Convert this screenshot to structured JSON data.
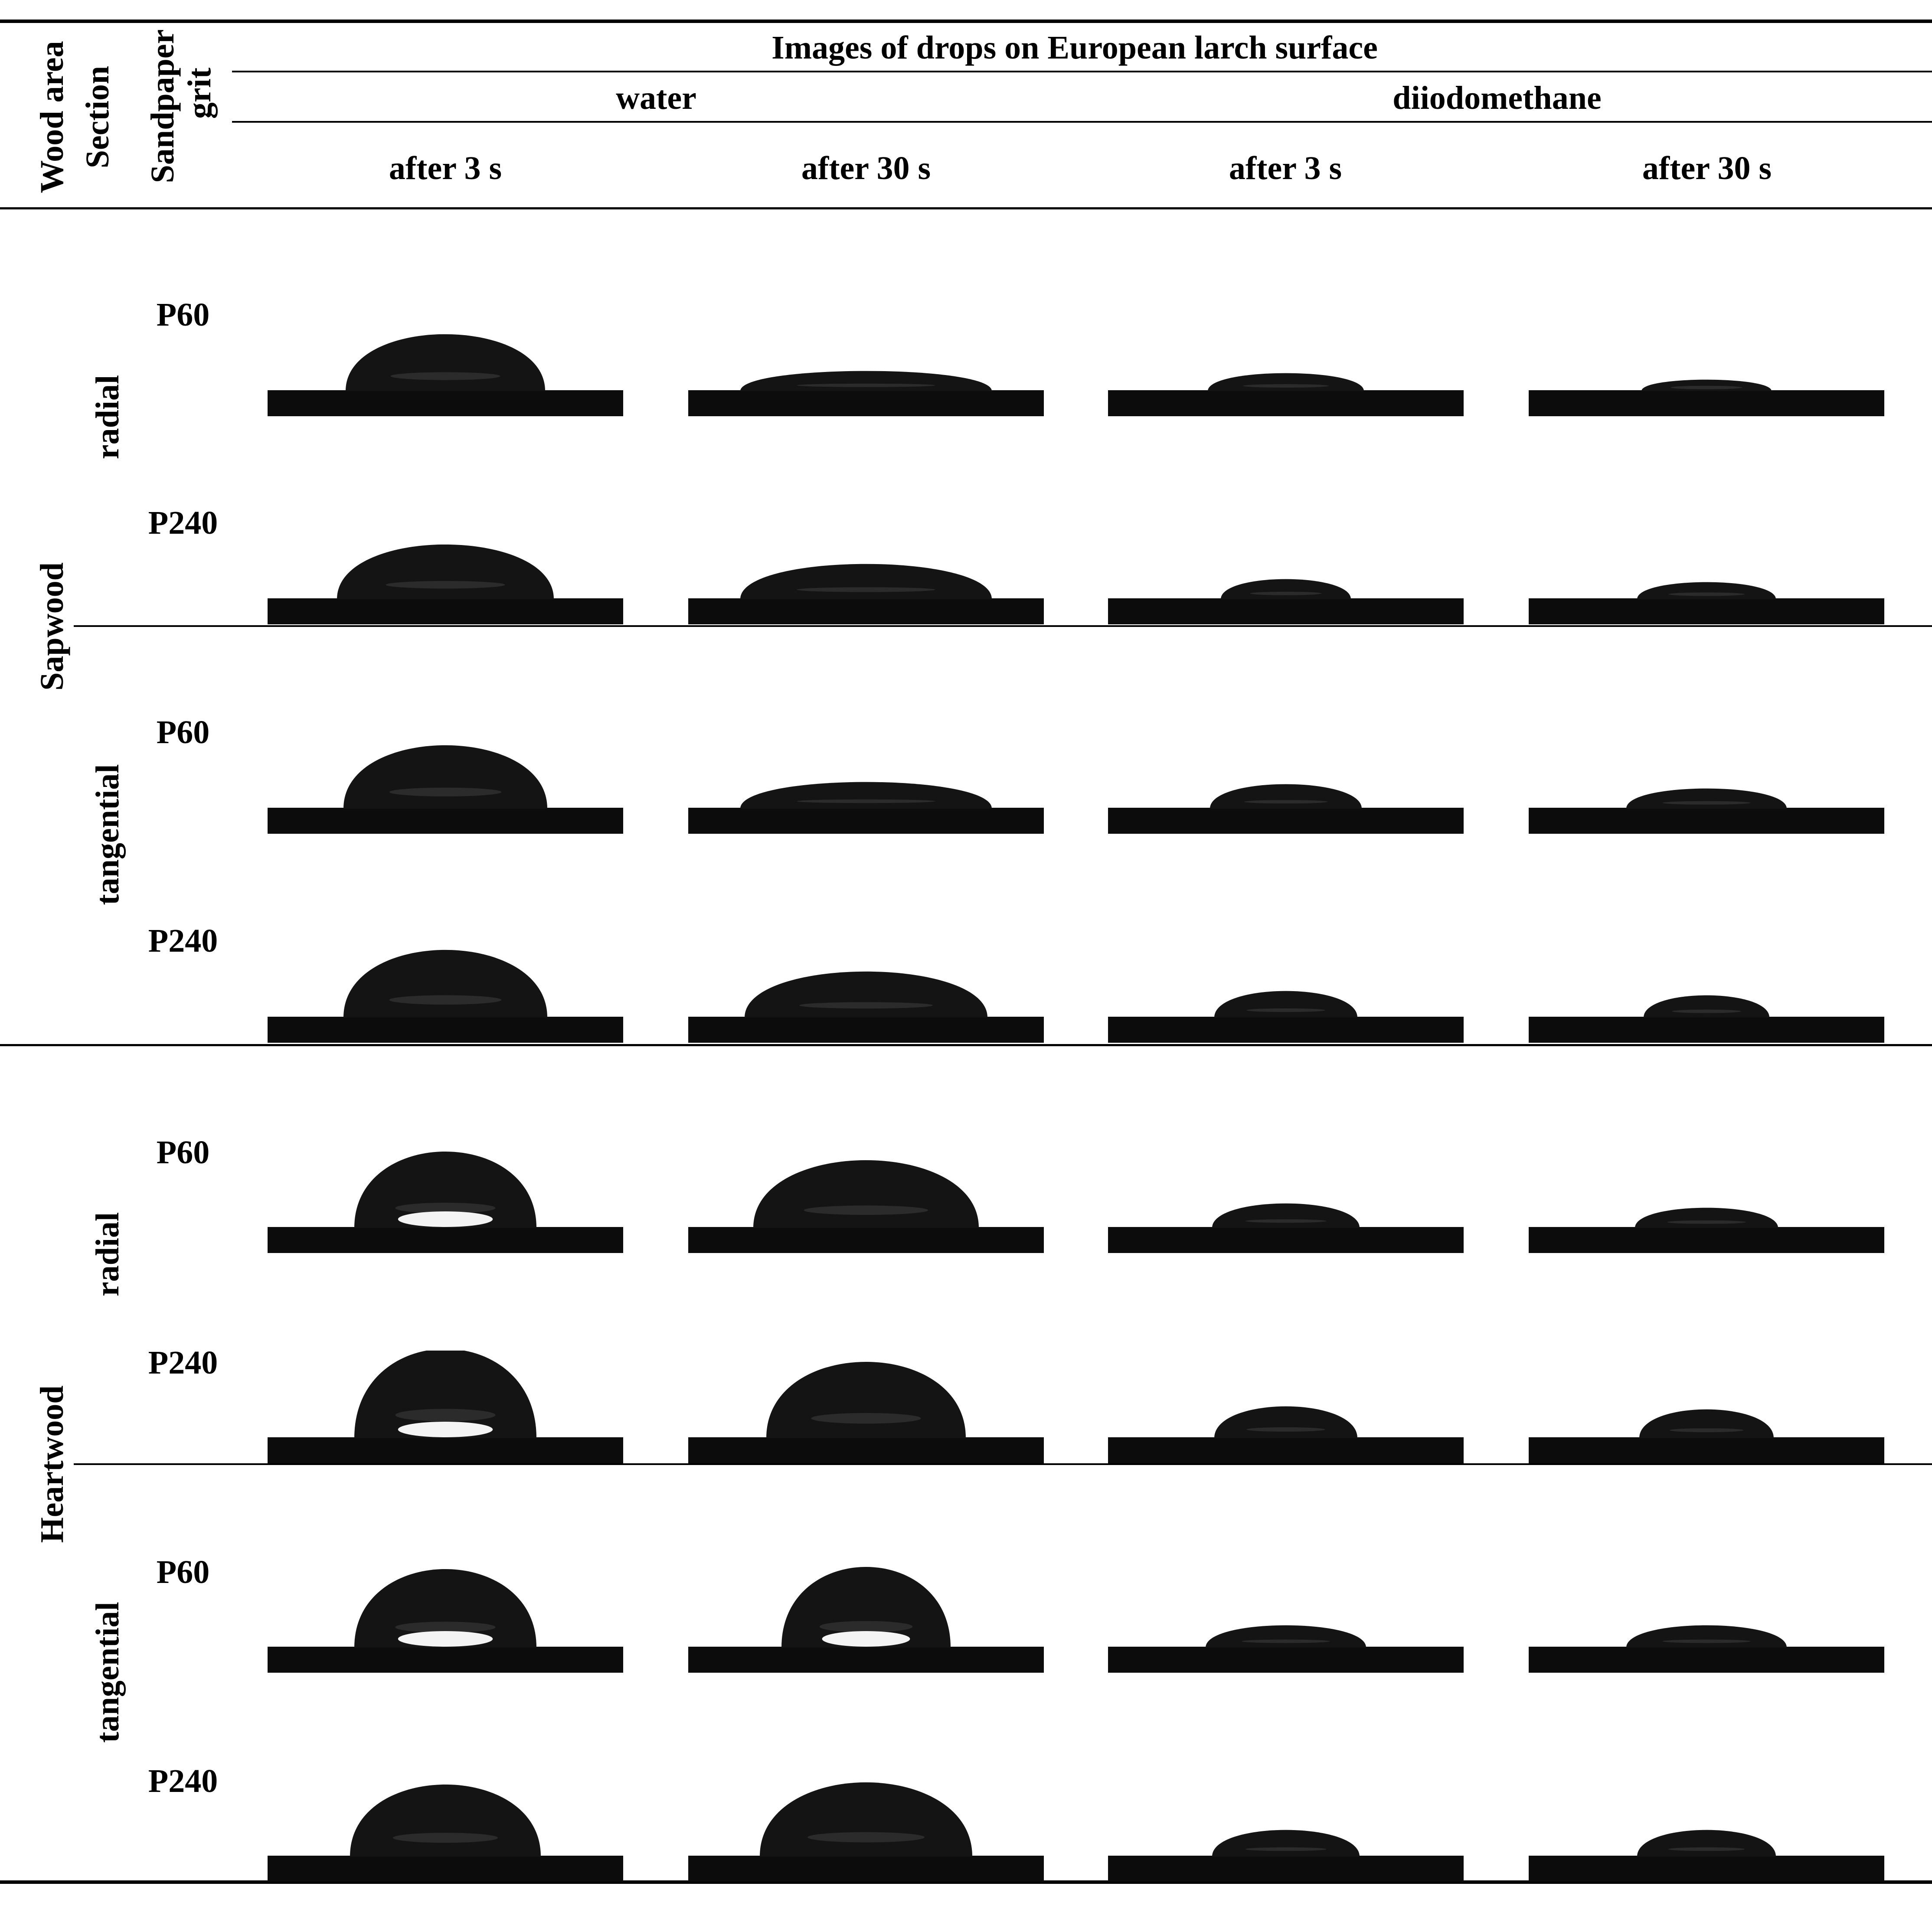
{
  "header": {
    "wood_area": "Wood area",
    "section": "Section",
    "sandpaper_1": "Sandpaper",
    "sandpaper_2": "grit",
    "title": "Images of drops on European larch surface",
    "liquid_water": "water",
    "liquid_diiodomethane": "diiodomethane",
    "t1": "after 3 s",
    "t2": "after 30 s",
    "t3": "after 3 s",
    "t4": "after 30 s"
  },
  "wood_areas": [
    "Sapwood",
    "Heartwood"
  ],
  "sections": [
    "radial",
    "tangential",
    "radial",
    "tangential"
  ],
  "grits": [
    "P60",
    "P240",
    "P60",
    "P240",
    "P60",
    "P240",
    "P60",
    "P240"
  ],
  "colors": {
    "drop": "#141414",
    "substrate": "#0c0c0c",
    "highlight": "#f4f4f4",
    "reflection": "#3a3a3a"
  }
}
